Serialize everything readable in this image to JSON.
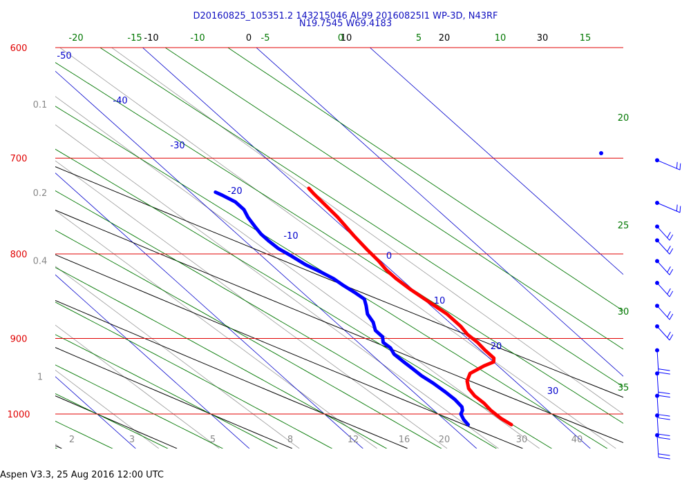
{
  "header": {
    "line1": "D20160825_105351.2 143215046 AL99 20160825I1 WP-3D, N43RF",
    "line2": "N19.7545 W69.4183"
  },
  "footer": "Aspen V3.3, 25 Aug 2016  12:00 UTC",
  "colors": {
    "isobar": "#e00000",
    "isotherm": "#0000cc",
    "dry_adiabat": "#000000",
    "moist_adiabat": "#007700",
    "mixing_ratio": "#999999",
    "temperature": "#ff0000",
    "dewpoint": "#0000ff",
    "wind": "#0000ff"
  },
  "chart_data": {
    "type": "line",
    "kind": "skew-T log-P sounding",
    "pressure_axis": {
      "ylim": [
        1050,
        600
      ],
      "scale": "log",
      "labels": [
        "600",
        "700",
        "800",
        "900",
        "1000"
      ],
      "values": [
        600,
        700,
        800,
        900,
        1000
      ]
    },
    "isotherms": [
      {
        "t": -50,
        "label": "-50"
      },
      {
        "t": -40,
        "label": "-40"
      },
      {
        "t": -30,
        "label": "-30"
      },
      {
        "t": -20,
        "label": "-20"
      },
      {
        "t": -10,
        "label": "-10"
      },
      {
        "t": 0,
        "label": "0"
      },
      {
        "t": 10,
        "label": "10"
      },
      {
        "t": 20,
        "label": "20"
      },
      {
        "t": 30,
        "label": "30"
      }
    ],
    "dry_adiabats": [
      {
        "theta_c": -10,
        "label": "-10"
      },
      {
        "theta_c": 0,
        "label": "0"
      },
      {
        "theta_c": 10,
        "label": "10"
      },
      {
        "theta_c": 20,
        "label": "20"
      },
      {
        "theta_c": 30,
        "label": "30"
      }
    ],
    "moist_adiabats": [
      {
        "label": "-20"
      },
      {
        "label": "-15"
      },
      {
        "label": "-10"
      },
      {
        "label": "-5"
      },
      {
        "label": "0"
      },
      {
        "label": "5"
      },
      {
        "label": "10"
      },
      {
        "label": "15"
      },
      {
        "label": "20"
      },
      {
        "label": "25"
      },
      {
        "label": "30"
      },
      {
        "label": "35"
      }
    ],
    "mixing_ratio_left_labels": [
      {
        "p": 650,
        "label": "0.1"
      },
      {
        "p": 735,
        "label": "0.2"
      },
      {
        "p": 808,
        "label": "0.4"
      },
      {
        "p": 950,
        "label": "1"
      }
    ],
    "mixing_ratio_bottom_labels": [
      "2",
      "3",
      "5",
      "8",
      "12",
      "16",
      "20",
      "30",
      "40"
    ],
    "series": [
      {
        "name": "Temperature",
        "points": [
          [
            1015,
            25.4
          ],
          [
            1006,
            25.1
          ],
          [
            995,
            25.0
          ],
          [
            985,
            25.1
          ],
          [
            975,
            25.0
          ],
          [
            965,
            25.2
          ],
          [
            955,
            25.8
          ],
          [
            945,
            26.8
          ],
          [
            935,
            28.8
          ],
          [
            930,
            30.0
          ],
          [
            925,
            30.4
          ],
          [
            915,
            30.4
          ],
          [
            905,
            30.5
          ],
          [
            895,
            30.4
          ],
          [
            885,
            30.6
          ],
          [
            870,
            30.6
          ],
          [
            855,
            30.2
          ],
          [
            840,
            29.8
          ],
          [
            828,
            29.6
          ],
          [
            818,
            29.6
          ],
          [
            808,
            29.8
          ],
          [
            795,
            29.9
          ],
          [
            780,
            30.1
          ],
          [
            770,
            30.3
          ],
          [
            760,
            30.5
          ],
          [
            748,
            30.6
          ],
          [
            736,
            30.7
          ],
          [
            730,
            30.8
          ]
        ]
      },
      {
        "name": "Dewpoint",
        "points": [
          [
            1015,
            21.6
          ],
          [
            1008,
            21.7
          ],
          [
            1000,
            22.0
          ],
          [
            995,
            22.5
          ],
          [
            990,
            22.8
          ],
          [
            980,
            22.9
          ],
          [
            970,
            22.8
          ],
          [
            958,
            22.6
          ],
          [
            948,
            22.3
          ],
          [
            938,
            22.2
          ],
          [
            930,
            22.1
          ],
          [
            920,
            22.0
          ],
          [
            912,
            22.3
          ],
          [
            905,
            22.2
          ],
          [
            898,
            22.7
          ],
          [
            890,
            22.7
          ],
          [
            880,
            23.3
          ],
          [
            870,
            23.6
          ],
          [
            860,
            24.3
          ],
          [
            852,
            24.8
          ],
          [
            844,
            24.6
          ],
          [
            836,
            24.3
          ],
          [
            828,
            24.1
          ],
          [
            820,
            23.6
          ],
          [
            812,
            23.0
          ],
          [
            802,
            22.6
          ],
          [
            794,
            22.2
          ],
          [
            786,
            22.1
          ],
          [
            778,
            22.1
          ],
          [
            770,
            22.3
          ],
          [
            760,
            22.6
          ],
          [
            752,
            23.0
          ],
          [
            744,
            23.0
          ],
          [
            737,
            22.5
          ],
          [
            734,
            22.2
          ]
        ]
      }
    ],
    "wind_barbs": [
      {
        "p": 702
      },
      {
        "p": 745
      },
      {
        "p": 770
      },
      {
        "p": 785
      },
      {
        "p": 808
      },
      {
        "p": 833
      },
      {
        "p": 860
      },
      {
        "p": 885
      },
      {
        "p": 915
      },
      {
        "p": 945
      },
      {
        "p": 975
      },
      {
        "p": 1002
      },
      {
        "p": 1030
      }
    ]
  }
}
